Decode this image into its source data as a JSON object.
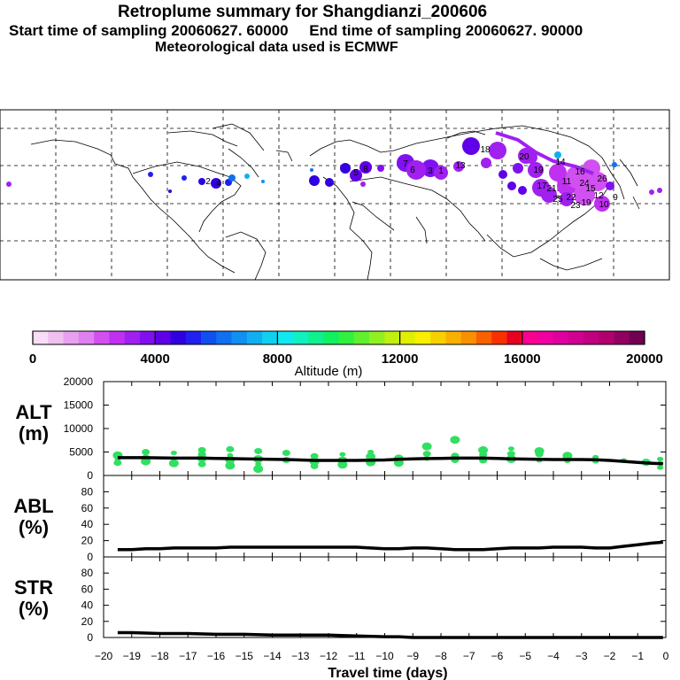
{
  "header": {
    "title": "Retroplume summary for Shangdianzi_200606",
    "start_label": "Start time of sampling 20060627. 60000",
    "end_label": "End time of sampling 20060627. 90000",
    "met_label": "Meteorological data used is ECMWF"
  },
  "colorbar": {
    "title": "Altitude (m)",
    "ticks": [
      "0",
      "4000",
      "8000",
      "12000",
      "16000",
      "20000"
    ],
    "colors": [
      "#f8dcf8",
      "#f0c0f0",
      "#e8a0f0",
      "#e080f0",
      "#d050f0",
      "#c030f0",
      "#a020f0",
      "#8010f0",
      "#6000e8",
      "#3000e0",
      "#2020f0",
      "#1050f0",
      "#1070f0",
      "#1090f0",
      "#10b0f0",
      "#10d0f0",
      "#10e8f0",
      "#10f0c0",
      "#10f090",
      "#10f060",
      "#30f040",
      "#60f030",
      "#90f020",
      "#c0f010",
      "#e0f000",
      "#f8f000",
      "#f8d000",
      "#f8b000",
      "#f89000",
      "#f86000",
      "#f83000",
      "#e80020",
      "#f80090",
      "#f000a0",
      "#e000a0",
      "#d00090",
      "#c00080",
      "#b00070",
      "#900060",
      "#700050"
    ]
  },
  "map": {
    "labels": [
      "20",
      "18",
      "19",
      "17",
      "14",
      "11",
      "16",
      "15",
      "12",
      "10",
      "9",
      "13",
      "21",
      "25",
      "22",
      "19",
      "23",
      "26",
      "24",
      "4",
      "2",
      "5",
      "8",
      "7",
      "6",
      "3",
      "1"
    ]
  },
  "chart_data": [
    {
      "type": "line",
      "panel": "ALT",
      "ylabel": "ALT\n(m)",
      "ylabel_lines": [
        "ALT",
        "(m)"
      ],
      "ylim": [
        0,
        20000
      ],
      "yticks": [
        0,
        5000,
        10000,
        15000,
        20000
      ],
      "ytick_labels": [
        "0",
        "5000",
        "10000",
        "15000",
        "20000"
      ],
      "xlim": [
        -20,
        0
      ],
      "median_line": {
        "x": [
          -19.5,
          -19,
          -18.5,
          -18,
          -17.5,
          -17,
          -16.5,
          -16,
          -15.5,
          -15,
          -14.5,
          -14,
          -13.5,
          -13,
          -12.5,
          -12,
          -11.5,
          -11,
          -10.5,
          -10,
          -9.5,
          -9,
          -8.5,
          -8,
          -7.5,
          -7,
          -6.5,
          -6,
          -5.5,
          -5,
          -4.5,
          -4,
          -3.5,
          -3,
          -2.5,
          -2,
          -1.5,
          -1,
          -0.5,
          -0.1
        ],
        "y": [
          3800,
          3800,
          3800,
          3750,
          3700,
          3700,
          3700,
          3650,
          3600,
          3550,
          3500,
          3450,
          3400,
          3300,
          3200,
          3200,
          3200,
          3200,
          3250,
          3300,
          3450,
          3550,
          3600,
          3650,
          3700,
          3700,
          3700,
          3650,
          3550,
          3500,
          3450,
          3400,
          3400,
          3400,
          3350,
          3200,
          3000,
          2800,
          2600,
          2500
        ]
      },
      "scatter": [
        {
          "x": -19.5,
          "y": 3500
        },
        {
          "x": -19.5,
          "y": 4300
        },
        {
          "x": -19.5,
          "y": 2700
        },
        {
          "x": -18.5,
          "y": 3800
        },
        {
          "x": -18.5,
          "y": 3000
        },
        {
          "x": -18.5,
          "y": 5000
        },
        {
          "x": -17.5,
          "y": 3600
        },
        {
          "x": -17.5,
          "y": 2600
        },
        {
          "x": -17.5,
          "y": 4800
        },
        {
          "x": -16.5,
          "y": 3700
        },
        {
          "x": -16.5,
          "y": 2400
        },
        {
          "x": -16.5,
          "y": 4500
        },
        {
          "x": -16.5,
          "y": 5400
        },
        {
          "x": -15.5,
          "y": 3300
        },
        {
          "x": -15.5,
          "y": 2100
        },
        {
          "x": -15.5,
          "y": 4300
        },
        {
          "x": -15.5,
          "y": 5600
        },
        {
          "x": -14.5,
          "y": 3500
        },
        {
          "x": -14.5,
          "y": 2400
        },
        {
          "x": -14.5,
          "y": 1400
        },
        {
          "x": -14.5,
          "y": 5200
        },
        {
          "x": -13.5,
          "y": 3300
        },
        {
          "x": -13.5,
          "y": 4800
        },
        {
          "x": -12.5,
          "y": 3000
        },
        {
          "x": -12.5,
          "y": 2000
        },
        {
          "x": -12.5,
          "y": 4100
        },
        {
          "x": -11.5,
          "y": 3200
        },
        {
          "x": -11.5,
          "y": 2300
        },
        {
          "x": -11.5,
          "y": 4500
        },
        {
          "x": -10.5,
          "y": 2800
        },
        {
          "x": -10.5,
          "y": 4000
        },
        {
          "x": -10.5,
          "y": 5000
        },
        {
          "x": -9.5,
          "y": 2700
        },
        {
          "x": -9.5,
          "y": 3600
        },
        {
          "x": -8.5,
          "y": 3600
        },
        {
          "x": -8.5,
          "y": 4600
        },
        {
          "x": -8.5,
          "y": 6200
        },
        {
          "x": -7.5,
          "y": 3300
        },
        {
          "x": -7.5,
          "y": 4200
        },
        {
          "x": -7.5,
          "y": 7600
        },
        {
          "x": -6.5,
          "y": 3200
        },
        {
          "x": -6.5,
          "y": 4400
        },
        {
          "x": -6.5,
          "y": 5400
        },
        {
          "x": -5.5,
          "y": 3500
        },
        {
          "x": -5.5,
          "y": 4600
        },
        {
          "x": -5.5,
          "y": 5700
        },
        {
          "x": -4.5,
          "y": 3200
        },
        {
          "x": -4.5,
          "y": 4500
        },
        {
          "x": -4.5,
          "y": 5200
        },
        {
          "x": -3.5,
          "y": 3100
        },
        {
          "x": -3.5,
          "y": 4200
        },
        {
          "x": -2.5,
          "y": 3000
        },
        {
          "x": -2.5,
          "y": 3900
        },
        {
          "x": -1.5,
          "y": 3200
        },
        {
          "x": -0.7,
          "y": 2800
        },
        {
          "x": -0.2,
          "y": 2600
        },
        {
          "x": -0.2,
          "y": 1700
        },
        {
          "x": -0.2,
          "y": 3500
        }
      ]
    },
    {
      "type": "line",
      "panel": "ABL",
      "ylabel": "ABL\n(%)",
      "ylabel_lines": [
        "ABL",
        "(%)"
      ],
      "ylim": [
        0,
        100
      ],
      "yticks": [
        0,
        20,
        40,
        60,
        80
      ],
      "ytick_labels": [
        "0",
        "20",
        "40",
        "60",
        "80"
      ],
      "xlim": [
        -20,
        0
      ],
      "x": [
        -19.5,
        -19,
        -18.5,
        -18,
        -17.5,
        -17,
        -16.5,
        -16,
        -15.5,
        -15,
        -14.5,
        -14,
        -13.5,
        -13,
        -12.5,
        -12,
        -11.5,
        -11,
        -10.5,
        -10,
        -9.5,
        -9,
        -8.5,
        -8,
        -7.5,
        -7,
        -6.5,
        -6,
        -5.5,
        -5,
        -4.5,
        -4,
        -3.5,
        -3,
        -2.5,
        -2,
        -1.5,
        -1,
        -0.5,
        -0.1
      ],
      "y": [
        9,
        9,
        10,
        10,
        11,
        11,
        11,
        11,
        12,
        12,
        12,
        12,
        12,
        12,
        12,
        12,
        12,
        12,
        11,
        10,
        10,
        11,
        11,
        10,
        9,
        9,
        9,
        10,
        11,
        11,
        11,
        12,
        12,
        12,
        11,
        11,
        13,
        15,
        17,
        18
      ]
    },
    {
      "type": "line",
      "panel": "STR",
      "ylabel": "STR\n(%)",
      "ylabel_lines": [
        "STR",
        "(%)"
      ],
      "ylim": [
        0,
        100
      ],
      "yticks": [
        0,
        20,
        40,
        60,
        80
      ],
      "ytick_labels": [
        "0",
        "20",
        "40",
        "60",
        "80"
      ],
      "xlim": [
        -20,
        0
      ],
      "xticks": [
        -20,
        -19,
        -18,
        -17,
        -16,
        -15,
        -14,
        -13,
        -12,
        -11,
        -10,
        -9,
        -8,
        -7,
        -6,
        -5,
        -4,
        -3,
        -2,
        -1,
        0
      ],
      "xtick_labels": [
        "−20",
        "−19",
        "−18",
        "−17",
        "−16",
        "−15",
        "−14",
        "−13",
        "−12",
        "−11",
        "−10",
        "−9",
        "−8",
        "−7",
        "−6",
        "−5",
        "−4",
        "−3",
        "−2",
        "−1",
        "0"
      ],
      "xlabel": "Travel time (days)",
      "x": [
        -19.5,
        -19,
        -18,
        -17,
        -16,
        -15,
        -14,
        -13,
        -12,
        -11,
        -10,
        -9.5,
        -9,
        -8,
        -7,
        -6,
        -5,
        -4,
        -3,
        -2,
        -1,
        -0.1
      ],
      "y": [
        6,
        6,
        5,
        5,
        4,
        4,
        3,
        3,
        3,
        2,
        1,
        1,
        0,
        0,
        0,
        0,
        0,
        0,
        0,
        0,
        0,
        0
      ]
    }
  ]
}
